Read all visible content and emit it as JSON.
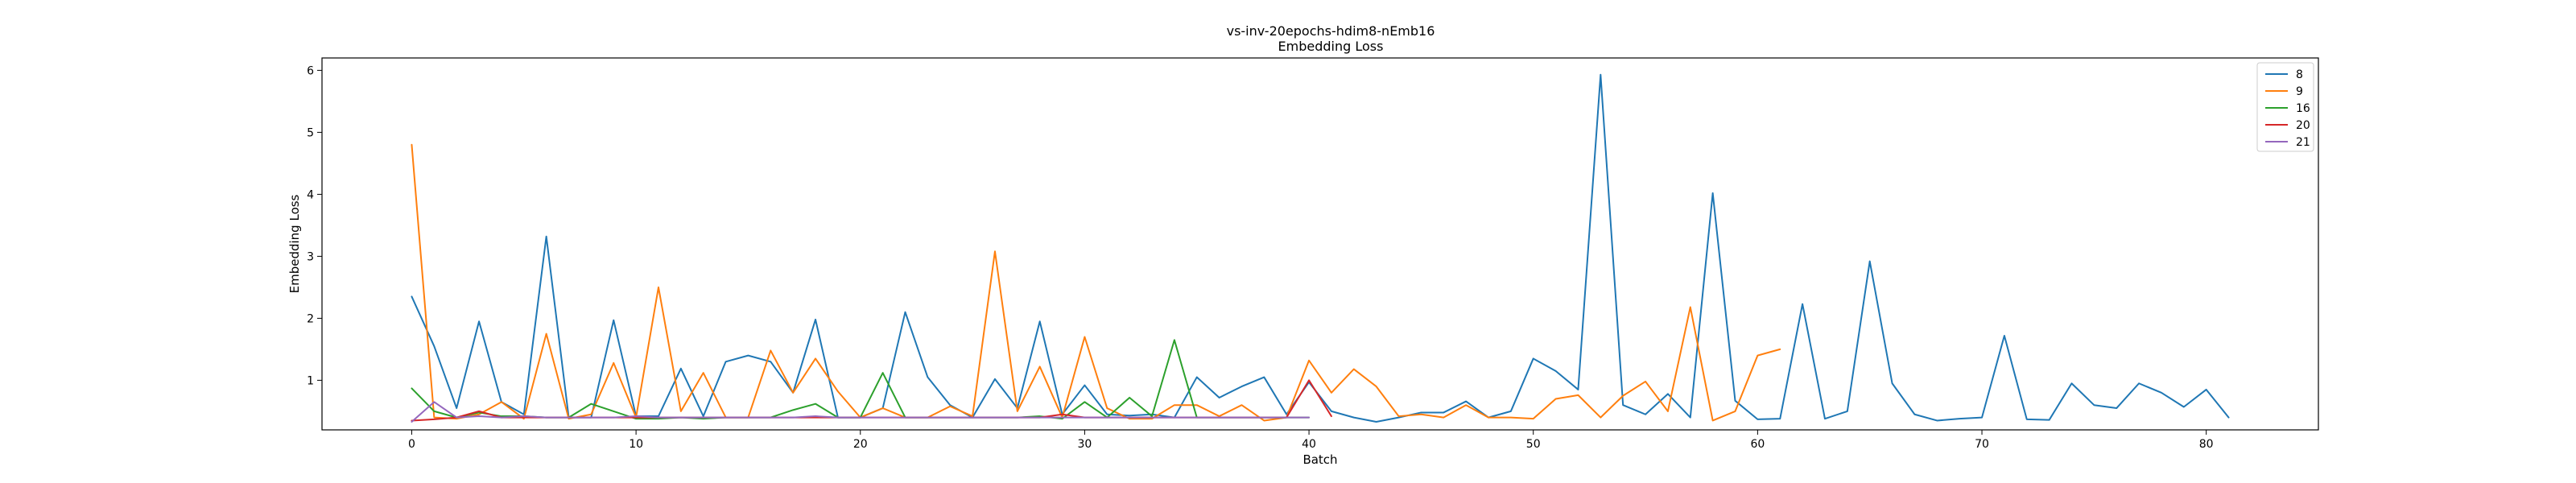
{
  "chart_data": {
    "type": "line",
    "title": "vs-inv-20epochs-hdim8-nEmb16",
    "subtitle": "Embedding Loss",
    "xlabel": "Batch",
    "ylabel": "Embedding Loss",
    "xlim": [
      -4,
      85
    ],
    "ylim": [
      0.2,
      6.2
    ],
    "xticks": [
      0,
      10,
      20,
      30,
      40,
      50,
      60,
      70,
      80
    ],
    "yticks": [
      1,
      2,
      3,
      4,
      5,
      6
    ],
    "grid": false,
    "legend_position": "top-right",
    "series": [
      {
        "name": "8",
        "color": "#1f77b4",
        "values": [
          2.35,
          1.55,
          0.55,
          1.95,
          0.65,
          0.45,
          3.32,
          0.4,
          0.4,
          1.97,
          0.42,
          0.42,
          1.19,
          0.42,
          1.3,
          1.4,
          1.3,
          0.8,
          1.98,
          0.4,
          0.4,
          0.55,
          2.1,
          1.05,
          0.6,
          0.4,
          1.02,
          0.55,
          1.95,
          0.45,
          0.92,
          0.45,
          0.43,
          0.45,
          0.4,
          1.05,
          0.72,
          0.9,
          1.05,
          0.45,
          0.97,
          0.5,
          0.4,
          0.33,
          0.4,
          0.48,
          0.48,
          0.66,
          0.4,
          0.5,
          1.35,
          1.15,
          0.85,
          5.93,
          0.6,
          0.45,
          0.78,
          0.4,
          4.02,
          0.67,
          0.37,
          0.38,
          2.23,
          0.38,
          0.5,
          2.92,
          0.95,
          0.45,
          0.35,
          0.38,
          0.4,
          1.72,
          0.37,
          0.36,
          0.95,
          0.6,
          0.55,
          0.95,
          0.8,
          0.57,
          0.85,
          0.4
        ]
      },
      {
        "name": "9",
        "color": "#ff7f0e",
        "values": [
          4.8,
          0.4,
          0.38,
          0.45,
          0.65,
          0.38,
          1.75,
          0.38,
          0.45,
          1.28,
          0.4,
          2.5,
          0.5,
          1.12,
          0.4,
          0.4,
          1.48,
          0.8,
          1.35,
          0.82,
          0.4,
          0.55,
          0.4,
          0.4,
          0.58,
          0.42,
          3.08,
          0.5,
          1.22,
          0.4,
          1.7,
          0.55,
          0.38,
          0.38,
          0.6,
          0.6,
          0.42,
          0.6,
          0.35,
          0.4,
          1.32,
          0.8,
          1.18,
          0.9,
          0.42,
          0.45,
          0.4,
          0.6,
          0.4,
          0.4,
          0.38,
          0.7,
          0.76,
          0.4,
          0.75,
          0.98,
          0.5,
          2.18,
          0.35,
          0.5,
          1.4,
          1.5
        ]
      },
      {
        "name": "16",
        "color": "#2ca02c",
        "values": [
          0.87,
          0.5,
          0.4,
          0.48,
          0.42,
          0.42,
          0.4,
          0.4,
          0.62,
          0.5,
          0.38,
          0.38,
          0.4,
          0.38,
          0.4,
          0.4,
          0.4,
          0.52,
          0.62,
          0.4,
          0.4,
          1.12,
          0.4,
          0.4,
          0.4,
          0.4,
          0.4,
          0.4,
          0.42,
          0.38,
          0.65,
          0.4,
          0.72,
          0.42,
          1.65,
          0.4,
          0.4,
          0.4,
          0.4,
          0.4,
          0.4
        ]
      },
      {
        "name": "20",
        "color": "#d62728",
        "values": [
          0.35,
          0.37,
          0.4,
          0.5,
          0.4,
          0.4,
          0.4,
          0.4,
          0.4,
          0.4,
          0.4,
          0.4,
          0.4,
          0.4,
          0.4,
          0.4,
          0.4,
          0.4,
          0.4,
          0.4,
          0.4,
          0.4,
          0.4,
          0.4,
          0.4,
          0.4,
          0.4,
          0.4,
          0.4,
          0.45,
          0.4,
          0.4,
          0.4,
          0.4,
          0.4,
          0.4,
          0.4,
          0.4,
          0.4,
          0.4,
          1.0,
          0.42
        ]
      },
      {
        "name": "21",
        "color": "#9467bd",
        "values": [
          0.33,
          0.65,
          0.4,
          0.42,
          0.4,
          0.42,
          0.4,
          0.4,
          0.4,
          0.4,
          0.42,
          0.4,
          0.4,
          0.4,
          0.4,
          0.4,
          0.4,
          0.4,
          0.42,
          0.4,
          0.4,
          0.4,
          0.4,
          0.4,
          0.4,
          0.4,
          0.4,
          0.4,
          0.4,
          0.4,
          0.4,
          0.4,
          0.4,
          0.4,
          0.4,
          0.4,
          0.4,
          0.4,
          0.4,
          0.4,
          0.4
        ]
      }
    ]
  }
}
